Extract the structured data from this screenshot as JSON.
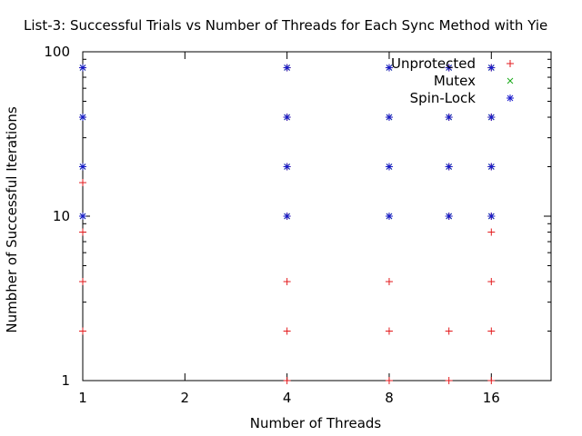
{
  "chart_data": {
    "type": "scatter",
    "title": "List-3: Successful Trials vs Number of Threads for Each Sync Method with Yie",
    "xlabel": "Number of Threads",
    "ylabel": "Numbher of Successful Iterations",
    "x_scale": "log2",
    "y_scale": "log10",
    "xlim": [
      1,
      24
    ],
    "ylim": [
      1,
      100
    ],
    "x_ticks": [
      1,
      2,
      4,
      8,
      16
    ],
    "y_ticks": [
      1,
      10,
      100
    ],
    "legend_position": "top-right",
    "series": [
      {
        "name": "Unprotected",
        "marker": "plus",
        "color": "#e31a1c",
        "points": [
          [
            1,
            2
          ],
          [
            1,
            4
          ],
          [
            1,
            8
          ],
          [
            1,
            16
          ],
          [
            1,
            20
          ],
          [
            1,
            40
          ],
          [
            1,
            80
          ],
          [
            4,
            1
          ],
          [
            4,
            2
          ],
          [
            4,
            4
          ],
          [
            4,
            10
          ],
          [
            4,
            20
          ],
          [
            4,
            40
          ],
          [
            4,
            80
          ],
          [
            8,
            1
          ],
          [
            8,
            2
          ],
          [
            8,
            4
          ],
          [
            8,
            10
          ],
          [
            8,
            20
          ],
          [
            8,
            40
          ],
          [
            8,
            80
          ],
          [
            12,
            1
          ],
          [
            12,
            2
          ],
          [
            12,
            10
          ],
          [
            12,
            20
          ],
          [
            12,
            40
          ],
          [
            12,
            80
          ],
          [
            16,
            1
          ],
          [
            16,
            2
          ],
          [
            16,
            4
          ],
          [
            16,
            8
          ],
          [
            16,
            10
          ],
          [
            16,
            20
          ],
          [
            16,
            40
          ],
          [
            16,
            80
          ]
        ]
      },
      {
        "name": "Mutex",
        "marker": "cross",
        "color": "#1aab1a",
        "points": [
          [
            1,
            10
          ],
          [
            1,
            20
          ],
          [
            1,
            40
          ],
          [
            1,
            80
          ],
          [
            4,
            10
          ],
          [
            4,
            20
          ],
          [
            4,
            40
          ],
          [
            4,
            80
          ],
          [
            8,
            10
          ],
          [
            8,
            20
          ],
          [
            8,
            40
          ],
          [
            8,
            80
          ],
          [
            12,
            10
          ],
          [
            12,
            20
          ],
          [
            12,
            40
          ],
          [
            12,
            80
          ],
          [
            16,
            10
          ],
          [
            16,
            20
          ],
          [
            16,
            40
          ],
          [
            16,
            80
          ]
        ]
      },
      {
        "name": "Spin-Lock",
        "marker": "star",
        "color": "#1a1acc",
        "points": [
          [
            1,
            10
          ],
          [
            1,
            20
          ],
          [
            1,
            40
          ],
          [
            1,
            80
          ],
          [
            4,
            10
          ],
          [
            4,
            20
          ],
          [
            4,
            40
          ],
          [
            4,
            80
          ],
          [
            8,
            10
          ],
          [
            8,
            20
          ],
          [
            8,
            40
          ],
          [
            8,
            80
          ],
          [
            12,
            10
          ],
          [
            12,
            20
          ],
          [
            12,
            40
          ],
          [
            12,
            80
          ],
          [
            16,
            10
          ],
          [
            16,
            20
          ],
          [
            16,
            40
          ],
          [
            16,
            80
          ]
        ]
      }
    ]
  }
}
